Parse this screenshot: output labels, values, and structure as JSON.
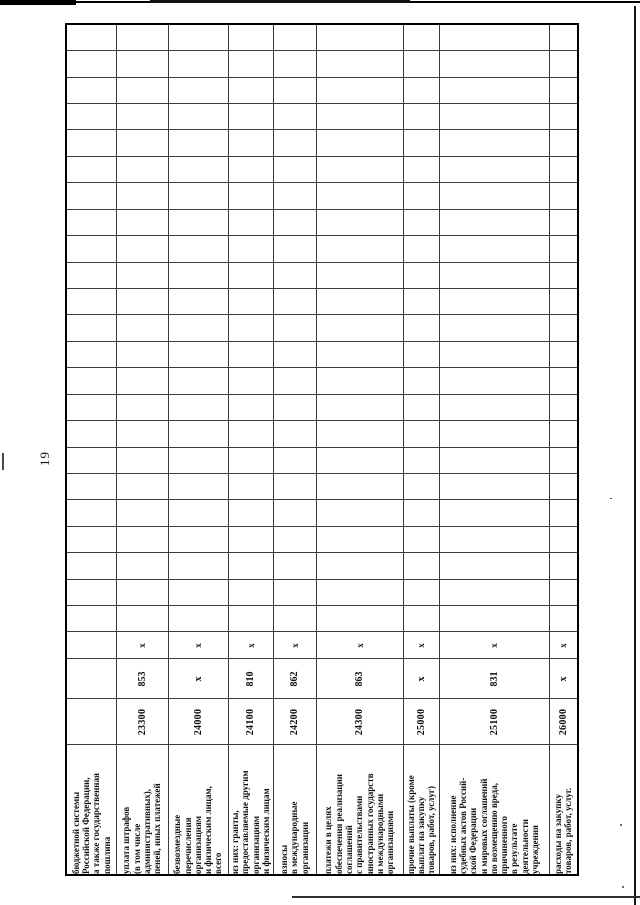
{
  "page": {
    "number": "19"
  },
  "table": {
    "empty_data_columns": 23,
    "rows": [
      {
        "name_lines": [
          "бюджетной системы",
          "Российской Федерации,",
          "а также государственная",
          "пошлина"
        ],
        "code": "",
        "kbk": "",
        "x": ""
      },
      {
        "name_lines": [
          "уплата штрафов",
          "(в том числе",
          "административных),",
          "пеней, иных платежей"
        ],
        "code": "23300",
        "kbk": "853",
        "x": "х"
      },
      {
        "name_lines": [
          "безвозмездные",
          "перечисления",
          "организациям",
          "и физическим лицам,",
          "всего"
        ],
        "code": "24000",
        "kbk": "х",
        "x": "х"
      },
      {
        "name_lines": [
          "из них: гранты,",
          "предоставляемые другим",
          "организациям",
          "и физическим лицам"
        ],
        "code": "24100",
        "kbk": "810",
        "x": "х"
      },
      {
        "name_lines": [
          "взносы",
          "в международные",
          "организации"
        ],
        "code": "24200",
        "kbk": "862",
        "x": "х"
      },
      {
        "name_lines": [
          "платежи в целях",
          "обеспечения реализации",
          "соглашений",
          "с правительствами",
          "иностранных государств",
          "и международными",
          "организациями"
        ],
        "code": "24300",
        "kbk": "863",
        "x": "х"
      },
      {
        "name_lines": [
          "прочие выплаты (кроме",
          "выплат на закупку",
          "товаров, работ, услуг)"
        ],
        "code": "25000",
        "kbk": "х",
        "x": "х"
      },
      {
        "name_lines": [
          "из них: исполнение",
          "судебных актов Россий-",
          "ской Федерации",
          "и мировых соглашений",
          "по возмещению вреда,",
          "причиненного",
          "в результате",
          "деятельности",
          "учреждения"
        ],
        "code": "25100",
        "kbk": "831",
        "x": "х"
      },
      {
        "name_lines": [
          "расходы на закупку",
          "товаров, работ, услуг."
        ],
        "code": "26000",
        "kbk": "х",
        "x": "х"
      }
    ]
  }
}
